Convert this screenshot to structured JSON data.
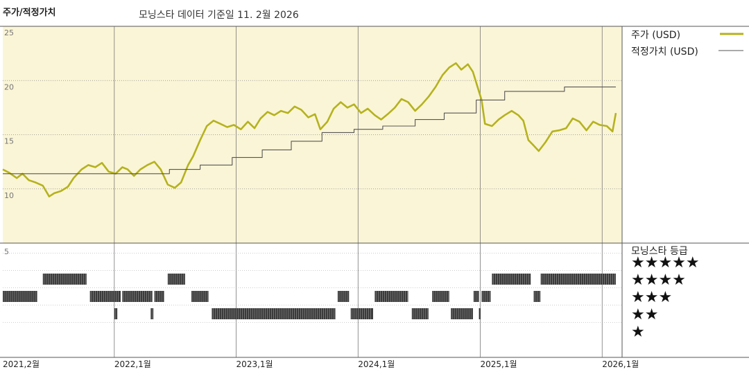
{
  "header": {
    "title": "주가/적정가치",
    "subtitle": "모닝스타 데이터 기준일 11. 2월 2026"
  },
  "legend": {
    "price_label": "주가 (USD)",
    "fair_value_label": "적정가치 (USD)",
    "rating_title": "모닝스타 등급"
  },
  "colors": {
    "price_line": "#b5b21e",
    "fair_value_line": "#555555",
    "upper_background": "#faf5d6",
    "rating_bar": "#3a3a3a"
  },
  "chart_data": [
    {
      "type": "line",
      "title": "주가/적정가치",
      "ylim": [
        5,
        25
      ],
      "yticks": [
        "10",
        "15",
        "20",
        "25"
      ],
      "x_date_range": [
        "2021-02-01",
        "2026-02-11"
      ],
      "x_tick_labels": [
        {
          "date": "2021-02-01",
          "label": "2021,2월"
        },
        {
          "date": "2022-01-01",
          "label": "2022,1월"
        },
        {
          "date": "2023-01-01",
          "label": "2023,1월"
        },
        {
          "date": "2024-01-01",
          "label": "2024,1월"
        },
        {
          "date": "2025-01-01",
          "label": "2025,1월"
        },
        {
          "date": "2026-01-01",
          "label": "2026,1월"
        }
      ],
      "series": [
        {
          "name": "주가 (USD)",
          "points": [
            [
              "2021-02-01",
              11.8
            ],
            [
              "2021-02-20",
              11.5
            ],
            [
              "2021-03-15",
              11.0
            ],
            [
              "2021-04-01",
              11.4
            ],
            [
              "2021-04-20",
              10.8
            ],
            [
              "2021-05-10",
              10.6
            ],
            [
              "2021-06-01",
              10.3
            ],
            [
              "2021-06-20",
              9.3
            ],
            [
              "2021-07-05",
              9.6
            ],
            [
              "2021-07-25",
              9.8
            ],
            [
              "2021-08-15",
              10.2
            ],
            [
              "2021-09-01",
              11.0
            ],
            [
              "2021-09-25",
              11.8
            ],
            [
              "2021-10-15",
              12.2
            ],
            [
              "2021-11-05",
              12.0
            ],
            [
              "2021-11-25",
              12.4
            ],
            [
              "2021-12-15",
              11.6
            ],
            [
              "2022-01-05",
              11.4
            ],
            [
              "2022-01-25",
              12.0
            ],
            [
              "2022-02-10",
              11.8
            ],
            [
              "2022-03-01",
              11.2
            ],
            [
              "2022-03-20",
              11.8
            ],
            [
              "2022-04-10",
              12.2
            ],
            [
              "2022-05-01",
              12.5
            ],
            [
              "2022-05-20",
              11.8
            ],
            [
              "2022-06-10",
              10.4
            ],
            [
              "2022-07-01",
              10.1
            ],
            [
              "2022-07-20",
              10.6
            ],
            [
              "2022-08-10",
              12.2
            ],
            [
              "2022-08-25",
              13.0
            ],
            [
              "2022-09-15",
              14.5
            ],
            [
              "2022-10-05",
              15.8
            ],
            [
              "2022-10-25",
              16.3
            ],
            [
              "2022-11-15",
              16.0
            ],
            [
              "2022-12-05",
              15.7
            ],
            [
              "2022-12-25",
              15.9
            ],
            [
              "2023-01-15",
              15.5
            ],
            [
              "2023-02-05",
              16.2
            ],
            [
              "2023-02-25",
              15.6
            ],
            [
              "2023-03-15",
              16.5
            ],
            [
              "2023-04-05",
              17.1
            ],
            [
              "2023-04-25",
              16.8
            ],
            [
              "2023-05-15",
              17.2
            ],
            [
              "2023-06-05",
              17.0
            ],
            [
              "2023-06-25",
              17.6
            ],
            [
              "2023-07-15",
              17.3
            ],
            [
              "2023-08-05",
              16.6
            ],
            [
              "2023-08-25",
              16.9
            ],
            [
              "2023-09-10",
              15.5
            ],
            [
              "2023-10-01",
              16.2
            ],
            [
              "2023-10-20",
              17.4
            ],
            [
              "2023-11-10",
              18.0
            ],
            [
              "2023-11-30",
              17.5
            ],
            [
              "2023-12-20",
              17.8
            ],
            [
              "2024-01-10",
              17.0
            ],
            [
              "2024-01-30",
              17.4
            ],
            [
              "2024-02-20",
              16.8
            ],
            [
              "2024-03-10",
              16.4
            ],
            [
              "2024-03-30",
              16.9
            ],
            [
              "2024-04-20",
              17.5
            ],
            [
              "2024-05-10",
              18.3
            ],
            [
              "2024-05-30",
              18.0
            ],
            [
              "2024-06-20",
              17.2
            ],
            [
              "2024-07-10",
              17.8
            ],
            [
              "2024-07-30",
              18.5
            ],
            [
              "2024-08-20",
              19.4
            ],
            [
              "2024-09-10",
              20.5
            ],
            [
              "2024-09-30",
              21.2
            ],
            [
              "2024-10-20",
              21.6
            ],
            [
              "2024-11-05",
              21.0
            ],
            [
              "2024-11-25",
              21.5
            ],
            [
              "2024-12-10",
              20.8
            ],
            [
              "2024-12-20",
              19.8
            ],
            [
              "2025-01-05",
              18.2
            ],
            [
              "2025-01-15",
              16.0
            ],
            [
              "2025-02-05",
              15.8
            ],
            [
              "2025-02-25",
              16.4
            ],
            [
              "2025-03-15",
              16.8
            ],
            [
              "2025-04-05",
              17.2
            ],
            [
              "2025-04-25",
              16.8
            ],
            [
              "2025-05-10",
              16.3
            ],
            [
              "2025-05-25",
              14.5
            ],
            [
              "2025-06-10",
              14.0
            ],
            [
              "2025-06-25",
              13.5
            ],
            [
              "2025-07-15",
              14.3
            ],
            [
              "2025-08-05",
              15.3
            ],
            [
              "2025-08-25",
              15.4
            ],
            [
              "2025-09-15",
              15.6
            ],
            [
              "2025-10-05",
              16.5
            ],
            [
              "2025-10-25",
              16.2
            ],
            [
              "2025-11-15",
              15.4
            ],
            [
              "2025-12-05",
              16.2
            ],
            [
              "2025-12-25",
              15.9
            ],
            [
              "2026-01-15",
              15.8
            ],
            [
              "2026-02-01",
              15.3
            ],
            [
              "2026-02-11",
              17.0
            ]
          ]
        },
        {
          "name": "적정가치 (USD)",
          "step": true,
          "points": [
            [
              "2021-02-01",
              11.4
            ],
            [
              "2022-06-15",
              11.4
            ],
            [
              "2022-06-15",
              11.8
            ],
            [
              "2022-09-15",
              11.8
            ],
            [
              "2022-09-15",
              12.2
            ],
            [
              "2022-12-20",
              12.2
            ],
            [
              "2022-12-20",
              12.9
            ],
            [
              "2023-03-20",
              12.9
            ],
            [
              "2023-03-20",
              13.6
            ],
            [
              "2023-06-15",
              13.6
            ],
            [
              "2023-06-15",
              14.4
            ],
            [
              "2023-09-15",
              14.4
            ],
            [
              "2023-09-15",
              15.2
            ],
            [
              "2023-12-20",
              15.2
            ],
            [
              "2023-12-20",
              15.5
            ],
            [
              "2024-03-15",
              15.5
            ],
            [
              "2024-03-15",
              15.8
            ],
            [
              "2024-06-20",
              15.8
            ],
            [
              "2024-06-20",
              16.4
            ],
            [
              "2024-09-15",
              16.4
            ],
            [
              "2024-09-15",
              17.0
            ],
            [
              "2024-12-20",
              17.0
            ],
            [
              "2024-12-20",
              18.2
            ],
            [
              "2025-03-15",
              18.2
            ],
            [
              "2025-03-15",
              19.0
            ],
            [
              "2025-09-10",
              19.0
            ],
            [
              "2025-09-10",
              19.4
            ],
            [
              "2026-02-11",
              19.4
            ]
          ]
        }
      ]
    },
    {
      "type": "heatmap",
      "title": "모닝스타 등급",
      "levels": [
        5,
        4,
        3,
        2,
        1
      ],
      "level_labels": [
        "★★★★★",
        "★★★★",
        "★★★",
        "★★",
        "★"
      ],
      "top_tick_label": "5",
      "rating_periods": [
        {
          "rating": 3,
          "start": "2021-02-01",
          "end": "2021-05-15"
        },
        {
          "rating": 4,
          "start": "2021-06-01",
          "end": "2021-10-10"
        },
        {
          "rating": 3,
          "start": "2021-10-20",
          "end": "2022-01-20"
        },
        {
          "rating": 2,
          "start": "2022-01-01",
          "end": "2022-01-10"
        },
        {
          "rating": 3,
          "start": "2022-01-25",
          "end": "2022-04-25"
        },
        {
          "rating": 2,
          "start": "2022-04-20",
          "end": "2022-04-28"
        },
        {
          "rating": 3,
          "start": "2022-05-01",
          "end": "2022-05-30"
        },
        {
          "rating": 4,
          "start": "2022-06-10",
          "end": "2022-08-01"
        },
        {
          "rating": 3,
          "start": "2022-08-20",
          "end": "2022-10-10"
        },
        {
          "rating": 2,
          "start": "2022-10-20",
          "end": "2023-10-25"
        },
        {
          "rating": 3,
          "start": "2023-11-01",
          "end": "2023-12-05"
        },
        {
          "rating": 2,
          "start": "2023-12-10",
          "end": "2024-02-15"
        },
        {
          "rating": 3,
          "start": "2024-02-20",
          "end": "2024-05-30"
        },
        {
          "rating": 2,
          "start": "2024-06-10",
          "end": "2024-07-30"
        },
        {
          "rating": 3,
          "start": "2024-08-10",
          "end": "2024-09-30"
        },
        {
          "rating": 2,
          "start": "2024-10-05",
          "end": "2024-12-10"
        },
        {
          "rating": 3,
          "start": "2024-12-12",
          "end": "2024-12-28"
        },
        {
          "rating": 2,
          "start": "2024-12-28",
          "end": "2025-01-02"
        },
        {
          "rating": 3,
          "start": "2025-01-05",
          "end": "2025-02-01"
        },
        {
          "rating": 4,
          "start": "2025-02-05",
          "end": "2025-06-01"
        },
        {
          "rating": 3,
          "start": "2025-06-10",
          "end": "2025-06-30"
        },
        {
          "rating": 4,
          "start": "2025-07-01",
          "end": "2026-02-11"
        }
      ]
    }
  ]
}
